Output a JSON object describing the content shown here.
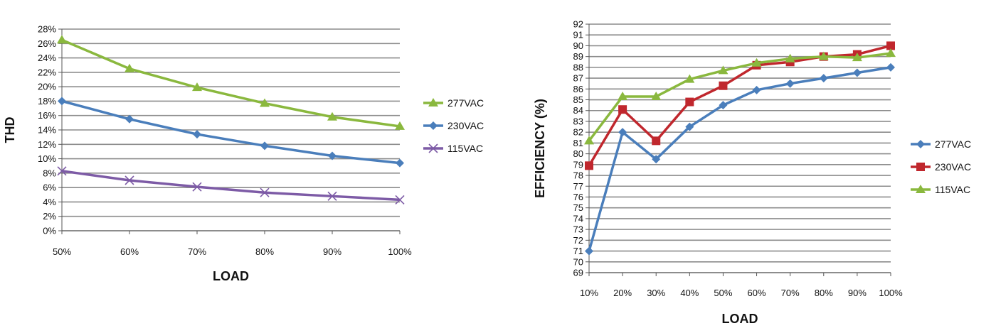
{
  "chart_data": [
    {
      "type": "line",
      "title": "",
      "xlabel": "LOAD",
      "ylabel": "THD",
      "categories": [
        "50%",
        "60%",
        "70%",
        "80%",
        "90%",
        "100%"
      ],
      "ylim": [
        0,
        28
      ],
      "ytick_step": 2,
      "ytick_suffix": "%",
      "grid": true,
      "legend": "right",
      "series": [
        {
          "name": "277VAC",
          "values": [
            26.5,
            22.5,
            19.9,
            17.7,
            15.8,
            14.5
          ],
          "color": "#8ab83e",
          "marker": "triangle"
        },
        {
          "name": "230VAC",
          "values": [
            18.0,
            15.5,
            13.4,
            11.8,
            10.4,
            9.4
          ],
          "color": "#4a7ebb",
          "marker": "diamond"
        },
        {
          "name": "115VAC",
          "values": [
            8.3,
            7.0,
            6.1,
            5.3,
            4.8,
            4.3
          ],
          "color": "#7d5ba6",
          "marker": "x"
        }
      ]
    },
    {
      "type": "line",
      "title": "",
      "xlabel": "LOAD",
      "ylabel": "EFFICIENCY (%)",
      "categories": [
        "10%",
        "20%",
        "30%",
        "40%",
        "50%",
        "60%",
        "70%",
        "80%",
        "90%",
        "100%"
      ],
      "ylim": [
        69,
        92
      ],
      "ytick_step": 1,
      "ytick_suffix": "",
      "grid": true,
      "legend": "right",
      "series": [
        {
          "name": "277VAC",
          "values": [
            71.0,
            82.0,
            79.5,
            82.5,
            84.5,
            85.9,
            86.5,
            87.0,
            87.5,
            88.0
          ],
          "color": "#4a7ebb",
          "marker": "diamond"
        },
        {
          "name": "230VAC",
          "values": [
            78.9,
            84.1,
            81.2,
            84.8,
            86.3,
            88.2,
            88.5,
            89.0,
            89.2,
            90.0
          ],
          "color": "#c0272d",
          "marker": "square"
        },
        {
          "name": "115VAC",
          "values": [
            81.2,
            85.3,
            85.3,
            86.9,
            87.7,
            88.4,
            88.8,
            89.0,
            88.9,
            89.3
          ],
          "color": "#8ab83e",
          "marker": "triangle"
        }
      ]
    }
  ]
}
